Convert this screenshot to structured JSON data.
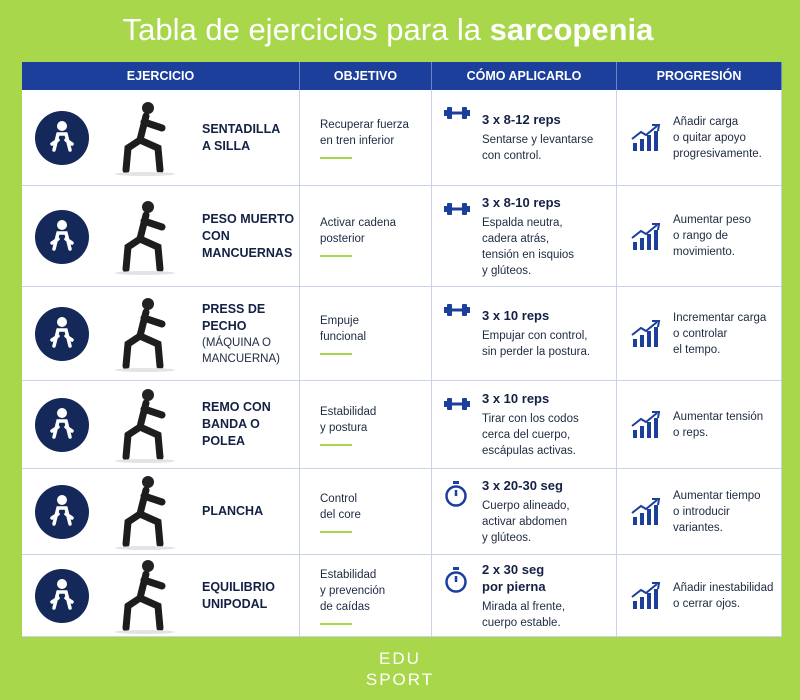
{
  "title": {
    "text": "Tabla de ejercicios para la ",
    "emphasis": "sarcopenia"
  },
  "header": [
    "EJERCICIO",
    "OBJETIVO",
    "CÓMO APLICARLO",
    "PROGRESIÓN"
  ],
  "rows": [
    {
      "name": [
        "SENTADILLA",
        "A SILLA"
      ],
      "objective": [
        "Recuperar fuerza",
        "en tren inferior"
      ],
      "dose": [
        "3 x 8-12 reps"
      ],
      "how": [
        "Sentarse y levantarse",
        "con control."
      ],
      "progression": [
        "Añadir carga",
        "o quitar apoyo",
        "progresivamente."
      ]
    },
    {
      "name": [
        "PESO MUERTO",
        "CON",
        "MANCUERNAS"
      ],
      "objective": [
        "Activar cadena",
        "posterior"
      ],
      "dose": [
        "3 x 8-10 reps"
      ],
      "how": [
        "Espalda neutra,",
        "cadera atrás,",
        "tensión en isquios",
        "y glúteos."
      ],
      "progression": [
        "Aumentar peso",
        "o rango de",
        "movimiento."
      ]
    },
    {
      "name": [
        "PRESS DE",
        "PECHO"
      ],
      "note": [
        "(MÁQUINA O",
        "MANCUERNA)"
      ],
      "objective": [
        "Empuje",
        "funcional"
      ],
      "dose": [
        "3 x 10 reps"
      ],
      "how": [
        "Empujar con control,",
        "sin perder la postura."
      ],
      "progression": [
        "Incrementar carga",
        "o controlar",
        "el tempo."
      ]
    },
    {
      "name": [
        "REMO CON",
        "BANDA O POLEA"
      ],
      "objective": [
        "Estabilidad",
        "y postura"
      ],
      "dose": [
        "3 x 10 reps"
      ],
      "how": [
        "Tirar con los codos",
        "cerca del cuerpo,",
        "escápulas activas."
      ],
      "progression": [
        "Aumentar tensión",
        "o reps."
      ]
    },
    {
      "name": [
        "PLANCHA"
      ],
      "objective": [
        "Control",
        "del core"
      ],
      "dose": [
        "3 x 20-30 seg"
      ],
      "how": [
        "Cuerpo alineado,",
        "activar abdomen",
        "y glúteos."
      ],
      "progression": [
        "Aumentar tiempo",
        "o introducir",
        "variantes."
      ]
    },
    {
      "name": [
        "EQUILIBRIO",
        "UNIPODAL"
      ],
      "objective": [
        "Estabilidad",
        "y prevención",
        "de caídas"
      ],
      "dose": [
        "2 x 30 seg",
        "por pierna"
      ],
      "how": [
        "Mirada al frente,",
        "cuerpo estable."
      ],
      "progression": [
        "Añadir inestabilidad",
        "o cerrar ojos."
      ]
    }
  ],
  "footer": [
    "EDU",
    "SPORT"
  ]
}
